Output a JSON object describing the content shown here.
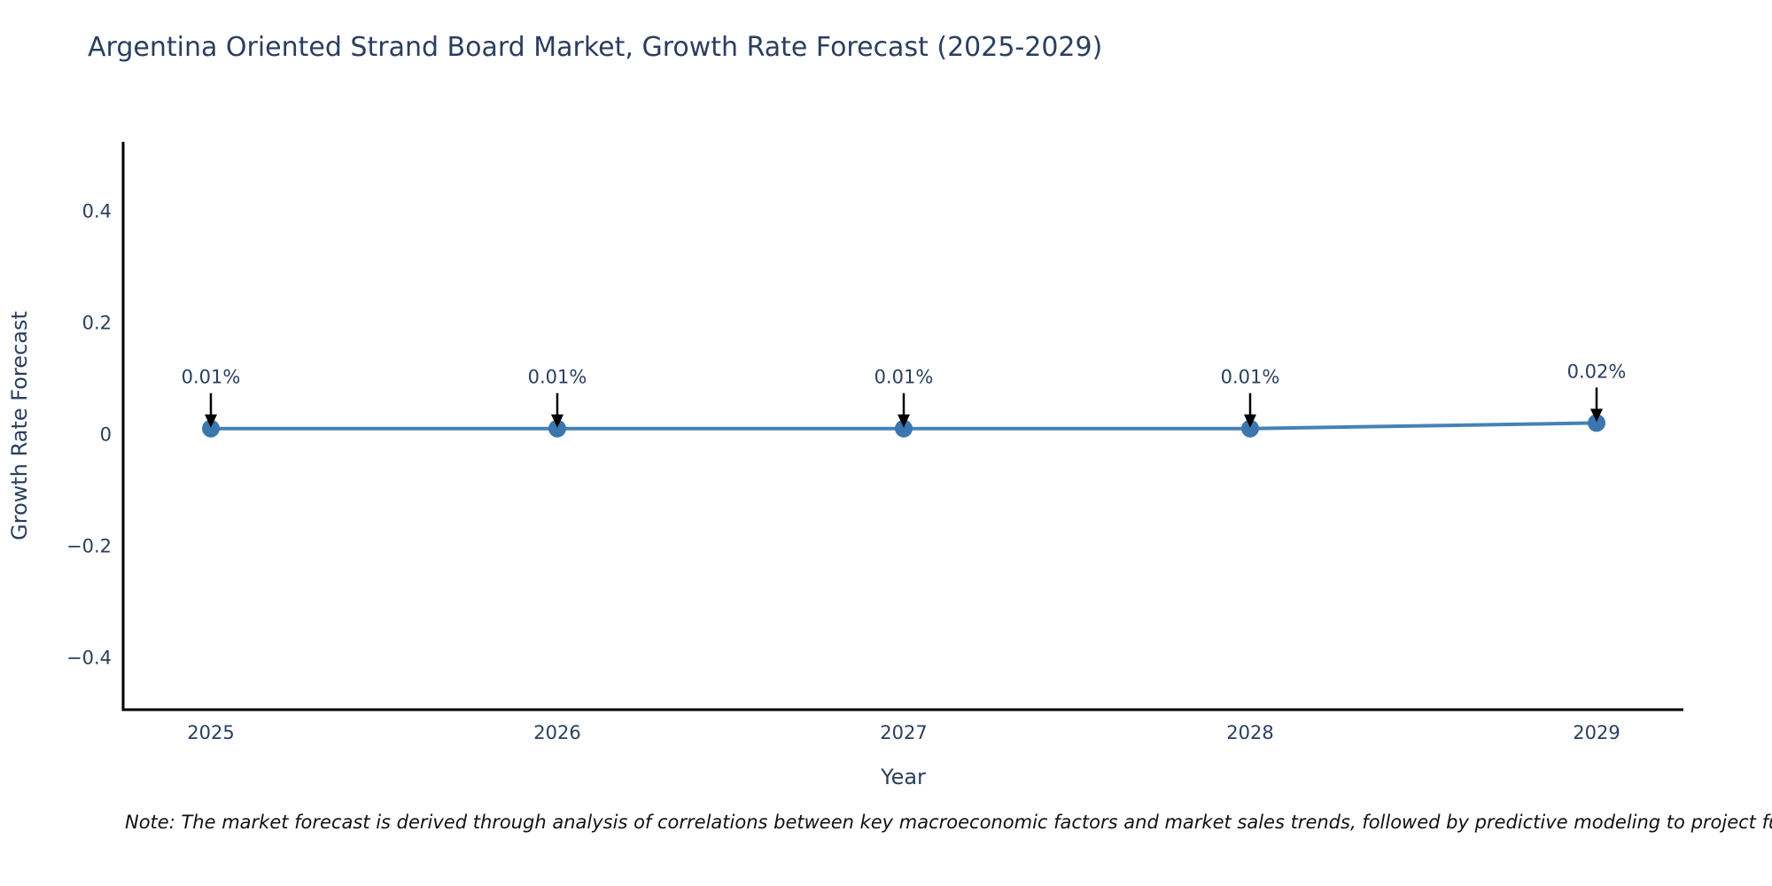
{
  "chart_data": {
    "type": "line",
    "title": "Argentina Oriented Strand Board Market, Growth Rate Forecast (2025-2029)",
    "xlabel": "Year",
    "ylabel": "Growth Rate Forecast",
    "categories": [
      "2025",
      "2026",
      "2027",
      "2028",
      "2029"
    ],
    "series": [
      {
        "name": "Growth Rate Forecast",
        "values": [
          0.01,
          0.01,
          0.01,
          0.01,
          0.02
        ],
        "point_labels": [
          "0.01%",
          "0.01%",
          "0.01%",
          "0.01%",
          "0.02%"
        ]
      }
    ],
    "yticks": [
      0.4,
      0.2,
      0,
      -0.2,
      -0.4
    ],
    "ylim": [
      -0.49,
      0.52
    ],
    "grid": false,
    "legend": "none",
    "colors": {
      "line": "#4682b4",
      "marker": "#3c76b1",
      "arrow": "#000000",
      "axis": "#000000",
      "text": "#2a3f5f",
      "note": "#111111"
    }
  },
  "note": "Note: The market forecast is derived through analysis of correlations between key macroeconomic factors and market sales trends, followed by predictive modeling to project future sa"
}
